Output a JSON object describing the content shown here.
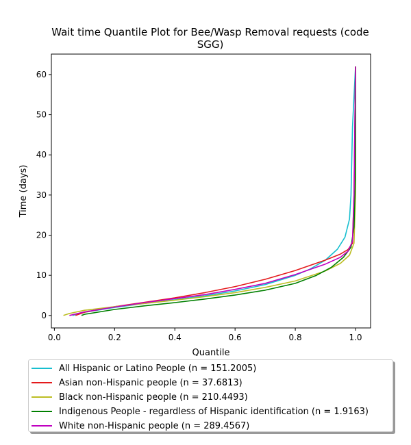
{
  "chart_data": {
    "type": "line",
    "title": "Wait time Quantile Plot for Bee/Wasp Removal  requests (code SGG)",
    "title_lines": [
      "Wait time Quantile Plot for Bee/Wasp Removal  requests (code",
      "SGG)"
    ],
    "xlabel": "Quantile",
    "ylabel": "Time (days)",
    "xlim": [
      -0.01,
      1.05
    ],
    "ylim": [
      -3.1,
      65.1
    ],
    "xticks": [
      0.0,
      0.2,
      0.4,
      0.6,
      0.8,
      1.0
    ],
    "xtick_labels": [
      "0.0",
      "0.2",
      "0.4",
      "0.6",
      "0.8",
      "1.0"
    ],
    "yticks": [
      0,
      10,
      20,
      30,
      40,
      50,
      60
    ],
    "ytick_labels": [
      "0",
      "10",
      "20",
      "30",
      "40",
      "50",
      "60"
    ],
    "grid": false,
    "legend_position": "below",
    "series": [
      {
        "name": "All Hispanic or Latino People (n = 151.2005)",
        "color": "#17becf",
        "x": [
          0.06,
          0.1,
          0.2,
          0.3,
          0.4,
          0.5,
          0.6,
          0.7,
          0.8,
          0.85,
          0.9,
          0.94,
          0.965,
          0.98,
          0.985,
          0.988,
          0.99,
          1.0
        ],
        "y": [
          0.0,
          0.8,
          2.0,
          3.0,
          3.9,
          4.9,
          6.1,
          7.7,
          10.0,
          11.6,
          13.8,
          16.5,
          19.5,
          24.0,
          30.0,
          40.0,
          47.0,
          62.0
        ]
      },
      {
        "name": "Asian non-Hispanic people (n = 37.6813)",
        "color": "#e41a1c",
        "x": [
          0.07,
          0.1,
          0.2,
          0.3,
          0.4,
          0.5,
          0.6,
          0.7,
          0.8,
          0.9,
          0.95,
          0.975,
          0.99,
          0.995,
          1.0
        ],
        "y": [
          0.0,
          0.8,
          2.2,
          3.3,
          4.4,
          5.7,
          7.2,
          9.0,
          11.2,
          13.8,
          15.3,
          16.4,
          18.0,
          30.0,
          62.0
        ]
      },
      {
        "name": "Black non-Hispanic people (n = 210.4493)",
        "color": "#bcbd22",
        "x": [
          0.03,
          0.05,
          0.1,
          0.2,
          0.3,
          0.4,
          0.5,
          0.6,
          0.7,
          0.8,
          0.9,
          0.95,
          0.98,
          0.995,
          1.0,
          1.0
        ],
        "y": [
          0.0,
          0.5,
          1.3,
          2.2,
          3.0,
          3.8,
          4.7,
          5.7,
          7.0,
          8.6,
          11.1,
          13.0,
          15.0,
          18.0,
          30.0,
          62.0
        ]
      },
      {
        "name": "Indigenous People - regardless of Hispanic identification (n = 1.9163)",
        "color": "#008000",
        "x": [
          0.09,
          0.1,
          0.2,
          0.3,
          0.4,
          0.5,
          0.6,
          0.7,
          0.8,
          0.87,
          0.92,
          0.96,
          0.985,
          0.995,
          1.0,
          1.0
        ],
        "y": [
          0.0,
          0.3,
          1.5,
          2.4,
          3.2,
          4.1,
          5.1,
          6.3,
          8.0,
          10.0,
          12.0,
          14.5,
          17.0,
          22.0,
          35.0,
          62.0
        ]
      },
      {
        "name": "White non-Hispanic people (n = 289.4567)",
        "color": "#c000c0",
        "x": [
          0.05,
          0.1,
          0.2,
          0.3,
          0.4,
          0.5,
          0.6,
          0.7,
          0.8,
          0.9,
          0.95,
          0.975,
          0.99,
          0.995,
          1.0
        ],
        "y": [
          0.0,
          0.9,
          2.1,
          3.2,
          4.2,
          5.2,
          6.5,
          8.0,
          10.2,
          12.8,
          14.5,
          16.0,
          18.5,
          30.0,
          62.0
        ]
      }
    ]
  }
}
